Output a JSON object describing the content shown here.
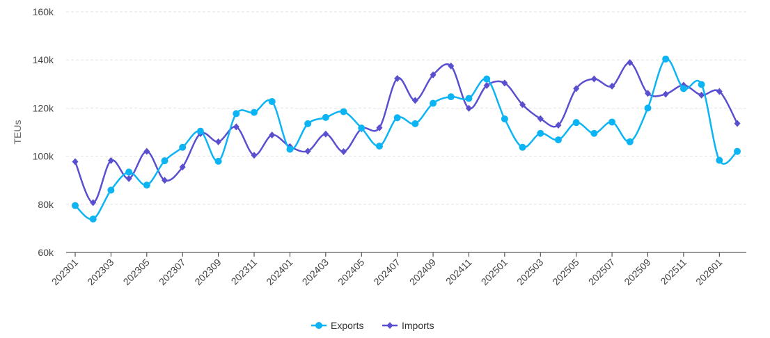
{
  "chart_data": {
    "type": "line",
    "title": "",
    "xlabel": "",
    "ylabel": "TEUs",
    "ylim": [
      60000,
      160000
    ],
    "yticks": [
      60000,
      80000,
      100000,
      120000,
      140000,
      160000
    ],
    "ytick_labels": [
      "60k",
      "80k",
      "100k",
      "120k",
      "140k",
      "160k"
    ],
    "grid": "horizontal dashed",
    "legend_position": "bottom",
    "x": [
      "202301",
      "202302",
      "202303",
      "202304",
      "202305",
      "202306",
      "202307",
      "202308",
      "202309",
      "202310",
      "202311",
      "202312",
      "202401",
      "202402",
      "202403",
      "202404",
      "202405",
      "202406",
      "202407",
      "202408",
      "202409",
      "202410",
      "202411",
      "202412",
      "202501",
      "202502",
      "202503",
      "202504",
      "202505",
      "202506",
      "202507",
      "202508",
      "202509",
      "202510",
      "202511",
      "202512",
      "202601",
      "202602"
    ],
    "xtick_labels": [
      "202301",
      "202303",
      "202305",
      "202307",
      "202309",
      "202311",
      "202401",
      "202403",
      "202405",
      "202407",
      "202409",
      "202411",
      "202501",
      "202503",
      "202505",
      "202507",
      "202509",
      "202511",
      "202601"
    ],
    "series": [
      {
        "name": "Exports",
        "color": "#0cb4f4",
        "marker": "circle",
        "values": [
          79500,
          73900,
          85900,
          93400,
          88000,
          98100,
          103700,
          110400,
          97900,
          117700,
          118200,
          122700,
          102900,
          113500,
          116100,
          118500,
          111700,
          104200,
          116000,
          113500,
          122000,
          124700,
          124000,
          132100,
          115500,
          103700,
          109500,
          106800,
          114000,
          109500,
          114200,
          106000,
          120000,
          140400,
          128100,
          129800,
          98300,
          102000
        ]
      },
      {
        "name": "Imports",
        "color": "#5a4fcf",
        "marker": "diamond",
        "values": [
          97700,
          80700,
          98200,
          90700,
          102000,
          90000,
          95500,
          109400,
          106000,
          112200,
          100400,
          108800,
          104000,
          102100,
          109200,
          101900,
          111400,
          111800,
          132300,
          123200,
          133800,
          137500,
          119900,
          129400,
          130400,
          121400,
          115600,
          112900,
          128100,
          132100,
          129100,
          138900,
          126100,
          125800,
          129500,
          125400,
          126900,
          113600
        ]
      }
    ]
  }
}
